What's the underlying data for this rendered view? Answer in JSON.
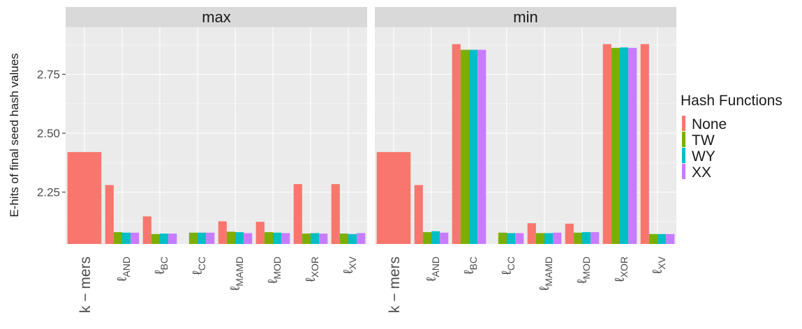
{
  "chart_data": {
    "type": "bar",
    "ylabel": "E-hits of final seed hash values",
    "yticks": [
      2.25,
      2.5,
      2.75
    ],
    "ylim": [
      2.03,
      2.95
    ],
    "legend": {
      "title": "Hash Functions",
      "position": "right"
    },
    "series": [
      {
        "name": "None",
        "color": "#F8766D"
      },
      {
        "name": "TW",
        "color": "#7CAE00"
      },
      {
        "name": "WY",
        "color": "#00BFC4"
      },
      {
        "name": "XX",
        "color": "#C77CFF"
      }
    ],
    "categories": [
      {
        "id": "kmers",
        "main": "k − mers",
        "sub": ""
      },
      {
        "id": "and",
        "main": "ℓ",
        "sub": "AND"
      },
      {
        "id": "bc",
        "main": "ℓ",
        "sub": "BC"
      },
      {
        "id": "cc",
        "main": "ℓ",
        "sub": "CC"
      },
      {
        "id": "mamd",
        "main": "ℓ",
        "sub": "MAMD"
      },
      {
        "id": "mod",
        "main": "ℓ",
        "sub": "MOD"
      },
      {
        "id": "xor",
        "main": "ℓ",
        "sub": "XOR"
      },
      {
        "id": "xv",
        "main": "ℓ",
        "sub": "XV"
      }
    ],
    "panels": [
      {
        "name": "max",
        "data": {
          "kmers": [
            2.42
          ],
          "and": [
            2.28,
            2.08,
            2.078,
            2.078
          ],
          "bc": [
            2.147,
            2.072,
            2.074,
            2.074
          ],
          "cc": [
            null,
            2.078,
            2.078,
            2.078
          ],
          "mamd": [
            2.126,
            2.082,
            2.08,
            2.076
          ],
          "mod": [
            2.124,
            2.08,
            2.078,
            2.076
          ],
          "xor": [
            2.284,
            2.074,
            2.076,
            2.074
          ],
          "xv": [
            2.284,
            2.074,
            2.072,
            2.076
          ]
        }
      },
      {
        "name": "min",
        "data": {
          "kmers": [
            2.42
          ],
          "and": [
            2.28,
            2.08,
            2.084,
            2.078
          ],
          "bc": [
            2.878,
            2.854,
            2.854,
            2.854
          ],
          "cc": [
            null,
            2.078,
            2.076,
            2.076
          ],
          "mamd": [
            2.118,
            2.076,
            2.076,
            2.078
          ],
          "mod": [
            2.116,
            2.078,
            2.08,
            2.08
          ],
          "xor": [
            2.878,
            2.862,
            2.864,
            2.862
          ],
          "xv": [
            2.878,
            2.072,
            2.072,
            2.072
          ]
        }
      }
    ]
  }
}
